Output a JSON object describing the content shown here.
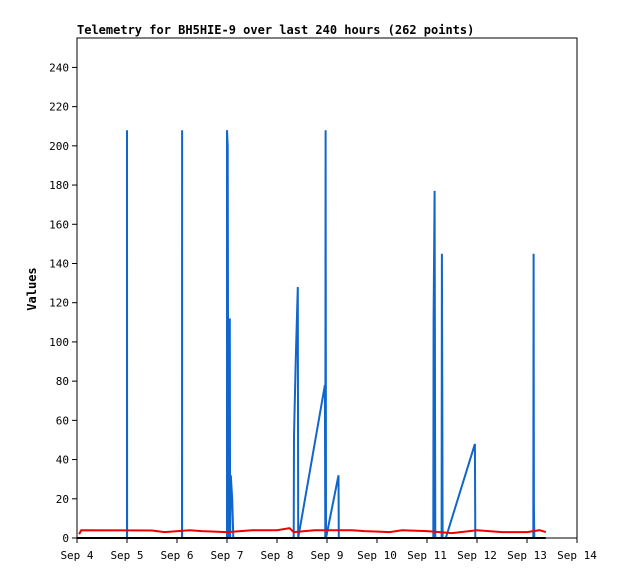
{
  "chart_data": {
    "type": "line",
    "title": "Telemetry for BH5HIE-9 over last 240 hours (262 points)",
    "xlabel": "",
    "ylabel": "Values",
    "xlim": [
      "2024-09-04",
      "2024-09-14"
    ],
    "ylim": [
      0,
      255
    ],
    "x_ticks": [
      "Sep 4",
      "Sep 5",
      "Sep 6",
      "Sep 7",
      "Sep 8",
      "Sep 9",
      "Sep 10",
      "Sep 11",
      "Sep 12",
      "Sep 13",
      "Sep 14"
    ],
    "y_ticks": [
      0,
      20,
      40,
      60,
      80,
      100,
      120,
      140,
      160,
      180,
      200,
      220,
      240
    ],
    "grid": false,
    "series": [
      {
        "color": "#1166cc",
        "points": [
          [
            "2024-09-04T00:00",
            0
          ],
          [
            "2024-09-04T23:59",
            0
          ],
          [
            "2024-09-05T00:00",
            208
          ],
          [
            "2024-09-05T00:02",
            0
          ],
          [
            "2024-09-06T02:24",
            0
          ],
          [
            "2024-09-06T02:26",
            208
          ],
          [
            "2024-09-06T02:28",
            0
          ],
          [
            "2024-09-06T23:59",
            0
          ],
          [
            "2024-09-07T00:00",
            208
          ],
          [
            "2024-09-07T00:20",
            200
          ],
          [
            "2024-09-07T00:40",
            0
          ],
          [
            "2024-09-07T01:00",
            84
          ],
          [
            "2024-09-07T01:10",
            0
          ],
          [
            "2024-09-07T01:20",
            112
          ],
          [
            "2024-09-07T01:30",
            0
          ],
          [
            "2024-09-07T01:50",
            32
          ],
          [
            "2024-09-07T02:30",
            20
          ],
          [
            "2024-09-07T03:00",
            0
          ],
          [
            "2024-09-08T08:00",
            0
          ],
          [
            "2024-09-08T08:10",
            52
          ],
          [
            "2024-09-08T09:00",
            92
          ],
          [
            "2024-09-08T10:00",
            128
          ],
          [
            "2024-09-08T10:10",
            0
          ],
          [
            "2024-09-08T23:00",
            78
          ],
          [
            "2024-09-08T23:10",
            0
          ],
          [
            "2024-09-08T23:20",
            208
          ],
          [
            "2024-09-08T23:30",
            0
          ],
          [
            "2024-09-09T05:30",
            32
          ],
          [
            "2024-09-09T05:40",
            0
          ],
          [
            "2024-09-11T03:00",
            0
          ],
          [
            "2024-09-11T03:10",
            112
          ],
          [
            "2024-09-11T03:40",
            177
          ],
          [
            "2024-09-11T04:00",
            0
          ],
          [
            "2024-09-11T07:00",
            0
          ],
          [
            "2024-09-11T07:10",
            145
          ],
          [
            "2024-09-11T07:20",
            72
          ],
          [
            "2024-09-11T07:30",
            0
          ],
          [
            "2024-09-11T09:00",
            0
          ],
          [
            "2024-09-11T23:00",
            48
          ],
          [
            "2024-09-11T23:10",
            0
          ],
          [
            "2024-09-13T03:00",
            0
          ],
          [
            "2024-09-13T03:10",
            145
          ],
          [
            "2024-09-13T03:20",
            16
          ],
          [
            "2024-09-13T03:30",
            0
          ]
        ]
      },
      {
        "color": "#ee0000",
        "points": [
          [
            "2024-09-04T01:00",
            2
          ],
          [
            "2024-09-04T02:00",
            4
          ],
          [
            "2024-09-05T12:00",
            3.8
          ],
          [
            "2024-09-05T18:00",
            3
          ],
          [
            "2024-09-06T06:00",
            4
          ],
          [
            "2024-09-06T12:00",
            3.5
          ],
          [
            "2024-09-07T00:00",
            3
          ],
          [
            "2024-09-07T12:00",
            4
          ],
          [
            "2024-09-08T00:00",
            4
          ],
          [
            "2024-09-08T06:00",
            5
          ],
          [
            "2024-09-08T08:00",
            3
          ],
          [
            "2024-09-08T18:00",
            4
          ],
          [
            "2024-09-09T12:00",
            4
          ],
          [
            "2024-09-09T18:00",
            3.5
          ],
          [
            "2024-09-10T06:00",
            3
          ],
          [
            "2024-09-10T12:00",
            4
          ],
          [
            "2024-09-11T00:00",
            3.5
          ],
          [
            "2024-09-11T12:00",
            2.5
          ],
          [
            "2024-09-12T00:00",
            4
          ],
          [
            "2024-09-12T12:00",
            3
          ],
          [
            "2024-09-13T00:00",
            3
          ],
          [
            "2024-09-13T06:00",
            4
          ],
          [
            "2024-09-13T09:00",
            3
          ]
        ]
      },
      {
        "color": "#000000",
        "points": [
          [
            "2024-09-04T00:00",
            0
          ],
          [
            "2024-09-13T09:00",
            0
          ]
        ]
      }
    ]
  }
}
